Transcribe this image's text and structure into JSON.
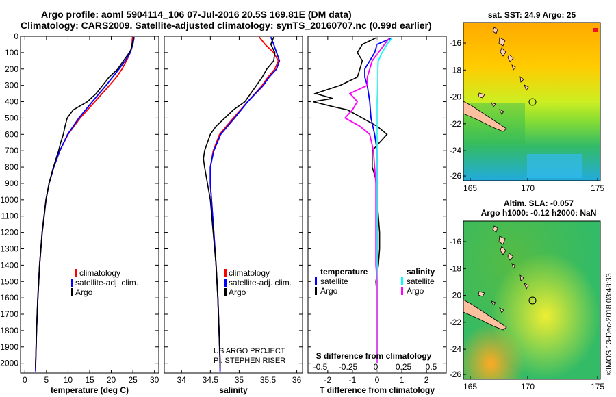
{
  "header": {
    "line1": "Argo profile: aoml 5904114_106 07-Jul-2016 20.5S 169.81E (DM data)",
    "line2": "Climatology: CARS2009. Satellite-adjusted climatology: synTS_20160707.nc (0.99d earlier)"
  },
  "colors": {
    "climatology": "#ff0000",
    "satellite": "#0000ff",
    "argo": "#000000",
    "t_sat": "#0000ff",
    "s_sat": "#00ffff",
    "s_argo": "#ff00ff"
  },
  "depth_ticks": [
    0,
    100,
    200,
    300,
    400,
    500,
    600,
    700,
    800,
    900,
    1000,
    1100,
    1200,
    1300,
    1400,
    1500,
    1600,
    1700,
    1800,
    1900,
    2000
  ],
  "chart_data": [
    {
      "type": "line",
      "xlabel": "temperature (deg C)",
      "xlim": [
        -1,
        31
      ],
      "ylim": [
        2060,
        0
      ],
      "xticks": [
        0,
        5,
        10,
        15,
        20,
        25,
        30
      ],
      "legend": [
        "climatology",
        "satellite-adj. clim.",
        "Argo"
      ],
      "series": [
        {
          "name": "climatology",
          "depth": [
            5,
            50,
            100,
            150,
            200,
            250,
            300,
            400,
            500,
            600,
            700,
            800,
            900,
            1000,
            1200,
            1400,
            1600,
            1800,
            2000,
            2050
          ],
          "values": [
            24.9,
            24.8,
            24.4,
            23.5,
            22.5,
            21.2,
            19.6,
            16.2,
            12.8,
            10.0,
            8.1,
            6.7,
            5.6,
            4.9,
            4.0,
            3.4,
            3.0,
            2.7,
            2.5,
            2.5
          ]
        },
        {
          "name": "satellite-adj. clim.",
          "depth": [
            5,
            50,
            100,
            150,
            200,
            250,
            300,
            400,
            500,
            600,
            700,
            800,
            900,
            1000,
            1200,
            1400,
            1600,
            1800,
            2000,
            2050
          ],
          "values": [
            25.3,
            25.0,
            24.4,
            23.2,
            21.8,
            20.3,
            18.8,
            15.6,
            12.5,
            9.9,
            8.1,
            6.7,
            5.6,
            4.9,
            4.0,
            3.4,
            3.0,
            2.7,
            2.5,
            2.5
          ]
        },
        {
          "name": "Argo",
          "depth": [
            5,
            40,
            80,
            110,
            150,
            200,
            250,
            300,
            350,
            400,
            450,
            500,
            550,
            600,
            650,
            700,
            800,
            900,
            1000,
            1200,
            1400,
            1600,
            1800,
            2000,
            2030
          ],
          "values": [
            25.2,
            24.9,
            24.6,
            23.9,
            22.8,
            21.5,
            19.5,
            18.0,
            16.5,
            14.5,
            11.2,
            9.8,
            9.3,
            8.9,
            8.3,
            7.8,
            6.6,
            5.6,
            4.9,
            4.0,
            3.4,
            3.0,
            2.7,
            2.5,
            2.5
          ]
        }
      ]
    },
    {
      "type": "line",
      "xlabel": "salinity",
      "xlim": [
        33.7,
        36.1
      ],
      "ylim": [
        2060,
        0
      ],
      "xticks": [
        34,
        34.5,
        35,
        35.5,
        36
      ],
      "annotation": [
        "US ARGO PROJECT",
        "PI: STEPHEN RISER"
      ],
      "legend": [
        "climatology",
        "satellite-adj. clim.",
        "Argo"
      ],
      "series": [
        {
          "name": "climatology",
          "depth": [
            5,
            50,
            100,
            150,
            200,
            250,
            300,
            400,
            500,
            600,
            700,
            800,
            900,
            1000,
            1200,
            1400,
            1600,
            1800,
            2000,
            2050
          ],
          "values": [
            35.35,
            35.45,
            35.6,
            35.68,
            35.62,
            35.5,
            35.4,
            35.15,
            34.9,
            34.66,
            34.55,
            34.5,
            34.5,
            34.52,
            34.56,
            34.6,
            34.63,
            34.65,
            34.67,
            34.67
          ]
        },
        {
          "name": "satellite-adj. clim.",
          "depth": [
            5,
            50,
            100,
            150,
            200,
            250,
            300,
            400,
            500,
            600,
            700,
            800,
            900,
            1000,
            1200,
            1400,
            1600,
            1800,
            2000,
            2050
          ],
          "values": [
            35.55,
            35.6,
            35.65,
            35.7,
            35.65,
            35.52,
            35.42,
            35.15,
            34.92,
            34.68,
            34.56,
            34.5,
            34.5,
            34.52,
            34.56,
            34.6,
            34.63,
            34.65,
            34.67,
            34.67
          ]
        },
        {
          "name": "Argo",
          "depth": [
            5,
            50,
            100,
            150,
            200,
            250,
            300,
            400,
            450,
            500,
            550,
            600,
            650,
            700,
            750,
            800,
            900,
            1000,
            1200,
            1400,
            1600,
            1800,
            2000,
            2030
          ],
          "values": [
            35.6,
            35.55,
            35.62,
            35.6,
            35.48,
            35.4,
            35.3,
            35.1,
            34.9,
            34.75,
            34.6,
            34.5,
            34.45,
            34.4,
            34.38,
            34.4,
            34.45,
            34.5,
            34.55,
            34.6,
            34.63,
            34.65,
            34.67,
            34.67
          ]
        }
      ]
    },
    {
      "type": "line",
      "xlabel": "T difference from climatology",
      "xlim": [
        -2.8,
        2.8
      ],
      "ylim": [
        2060,
        0
      ],
      "xticks": [
        -2,
        -1,
        0,
        1,
        2
      ],
      "secondary_axis": {
        "label": "S difference from climatology",
        "ticks": [
          "-0.5",
          "-0.25",
          "0",
          "0.25",
          "0.5"
        ]
      },
      "legend_left": {
        "title": "temperature",
        "items": [
          "satellite",
          "Argo"
        ]
      },
      "legend_right": {
        "title": "salinity",
        "items": [
          "satellite",
          "Argo"
        ]
      },
      "series": [
        {
          "name": "T Argo",
          "depth": [
            10,
            50,
            100,
            150,
            200,
            250,
            300,
            350,
            380,
            400,
            430,
            450,
            500,
            550,
            600,
            650,
            700,
            800,
            900,
            1000,
            1100,
            1200,
            1300,
            1400,
            1450,
            1500,
            1600,
            1800,
            2000
          ],
          "values": [
            -0.05,
            -0.6,
            -0.8,
            -0.6,
            -0.7,
            -0.8,
            -1.5,
            -2.5,
            -1.8,
            -2.6,
            -1.8,
            -1.2,
            -0.6,
            0.0,
            0.4,
            0.1,
            -0.2,
            -0.2,
            0.0,
            0.0,
            0.05,
            0.1,
            0.1,
            0.05,
            0.0,
            -0.05,
            0.0,
            0.0,
            0.0
          ]
        },
        {
          "name": "T satellite",
          "depth": [
            10,
            50,
            100,
            150,
            200,
            250,
            300,
            400,
            500,
            600,
            700,
            800,
            900,
            1000,
            1200,
            1400,
            1600,
            1800,
            2000
          ],
          "values": [
            0.6,
            0.0,
            -0.1,
            -0.3,
            -0.5,
            -0.5,
            -0.4,
            -0.3,
            -0.25,
            -0.1,
            0.0,
            0.0,
            0.0,
            0.0,
            0.0,
            0.0,
            0.0,
            0.0,
            0.0
          ]
        },
        {
          "name": "S satellite",
          "depth": [
            10,
            50,
            100,
            150,
            200,
            300,
            400,
            500,
            600,
            700,
            800,
            1000,
            1200,
            1400,
            1600,
            1800,
            2000
          ],
          "values": [
            0.6,
            0.4,
            0.2,
            0.05,
            0.03,
            0.02,
            0.0,
            0.0,
            0.0,
            0.0,
            0.0,
            0.0,
            0.0,
            0.0,
            0.0,
            0.0,
            0.0
          ]
        },
        {
          "name": "S Argo",
          "depth": [
            10,
            50,
            100,
            150,
            200,
            250,
            300,
            350,
            400,
            450,
            500,
            550,
            600,
            700,
            800,
            900,
            1000,
            1200,
            1300,
            1400,
            1500,
            1600,
            1800,
            2000
          ],
          "values": [
            0.5,
            0.3,
            0.05,
            -0.2,
            -0.3,
            -0.4,
            -0.4,
            -1.1,
            -0.8,
            -1.0,
            -1.3,
            -0.7,
            -0.3,
            -0.15,
            -0.1,
            -0.05,
            -0.05,
            -0.05,
            -0.05,
            -0.05,
            0.0,
            0.0,
            0.0,
            0.0
          ]
        }
      ]
    },
    {
      "type": "heatmap",
      "title": "sat. SST: 24.9 Argo: 25",
      "xticks": [
        "165",
        "170",
        "175"
      ],
      "yticks": [
        "-16",
        "-18",
        "-20",
        "-22",
        "-24",
        "-26"
      ]
    },
    {
      "type": "heatmap",
      "title": "Altim. SLA: -0.057",
      "subtitle": "Argo h1000: -0.12 h2000: NaN",
      "xticks": [
        "165",
        "170",
        "175"
      ],
      "yticks": [
        "-16",
        "-18",
        "-20",
        "-22",
        "-24",
        "-26"
      ]
    }
  ],
  "credit": "©IMOS 13-Dec-2018 03:48:33"
}
